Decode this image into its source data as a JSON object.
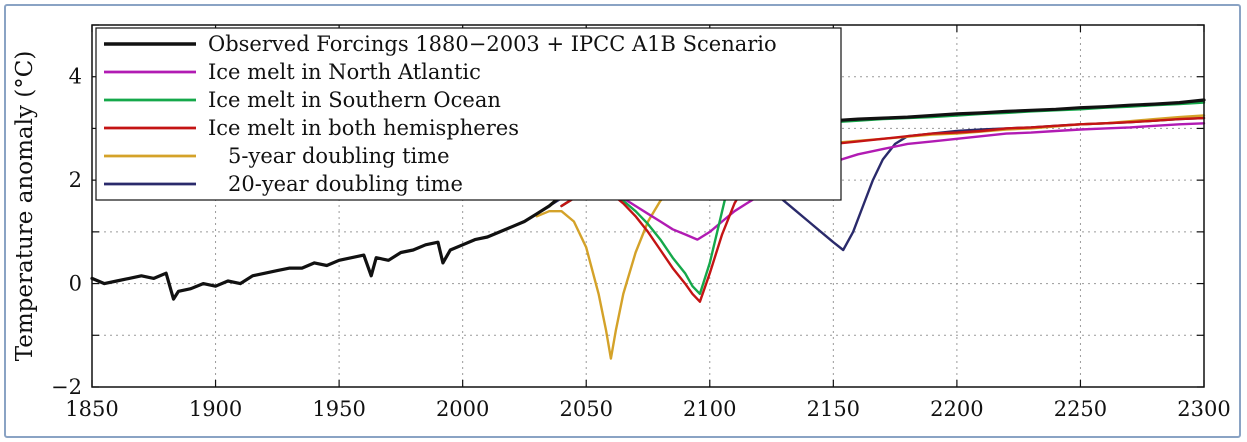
{
  "chart_data": {
    "type": "line",
    "title": "",
    "xlabel": "",
    "ylabel": "Temperature anomaly (°C)",
    "xlim": [
      1850,
      2300
    ],
    "ylim": [
      -2,
      5
    ],
    "xticks": [
      "1850",
      "1900",
      "1950",
      "2000",
      "2050",
      "2100",
      "2150",
      "2200",
      "2250",
      "2300"
    ],
    "yticks": [
      "−2",
      "0",
      "2",
      "4"
    ],
    "grid": true,
    "legend_position": "top-left",
    "series": [
      {
        "name": "Observed Forcings 1880−2003 + IPCC A1B Scenario",
        "color": "#111111",
        "x": [
          1850,
          1855,
          1860,
          1865,
          1870,
          1875,
          1880,
          1883,
          1885,
          1890,
          1895,
          1900,
          1905,
          1910,
          1915,
          1920,
          1925,
          1930,
          1935,
          1940,
          1945,
          1950,
          1955,
          1960,
          1963,
          1965,
          1970,
          1975,
          1980,
          1985,
          1990,
          1992,
          1995,
          2000,
          2005,
          2010,
          2015,
          2020,
          2025,
          2030,
          2035,
          2040,
          2045,
          2050,
          2055,
          2060,
          2065,
          2070,
          2075,
          2080,
          2085,
          2090,
          2095,
          2100,
          2110,
          2120,
          2130,
          2140,
          2150,
          2160,
          2170,
          2180,
          2190,
          2200,
          2210,
          2220,
          2230,
          2240,
          2250,
          2260,
          2270,
          2280,
          2290,
          2300
        ],
        "y": [
          0.1,
          0.0,
          0.05,
          0.1,
          0.15,
          0.1,
          0.2,
          -0.3,
          -0.15,
          -0.1,
          0.0,
          -0.05,
          0.05,
          0.0,
          0.15,
          0.2,
          0.25,
          0.3,
          0.3,
          0.4,
          0.35,
          0.45,
          0.5,
          0.55,
          0.15,
          0.5,
          0.45,
          0.6,
          0.65,
          0.75,
          0.8,
          0.4,
          0.65,
          0.75,
          0.85,
          0.9,
          1.0,
          1.1,
          1.2,
          1.35,
          1.5,
          1.7,
          1.85,
          1.95,
          2.1,
          2.25,
          2.4,
          2.55,
          2.65,
          2.75,
          2.85,
          2.9,
          2.95,
          3.0,
          3.05,
          3.08,
          3.1,
          3.12,
          3.15,
          3.18,
          3.2,
          3.22,
          3.25,
          3.28,
          3.3,
          3.33,
          3.35,
          3.37,
          3.4,
          3.42,
          3.45,
          3.47,
          3.5,
          3.55
        ]
      },
      {
        "name": "Ice melt in North Atlantic",
        "color": "#b11bb3",
        "x": [
          2040,
          2045,
          2050,
          2055,
          2060,
          2065,
          2070,
          2075,
          2080,
          2085,
          2090,
          2095,
          2100,
          2105,
          2110,
          2115,
          2120,
          2130,
          2140,
          2150,
          2160,
          2170,
          2180,
          2190,
          2200,
          2210,
          2220,
          2230,
          2240,
          2250,
          2260,
          2270,
          2280,
          2290,
          2300
        ],
        "y": [
          1.5,
          1.65,
          1.75,
          1.8,
          1.75,
          1.65,
          1.5,
          1.35,
          1.2,
          1.05,
          0.95,
          0.85,
          1.0,
          1.2,
          1.4,
          1.55,
          1.7,
          1.95,
          2.15,
          2.35,
          2.5,
          2.6,
          2.7,
          2.75,
          2.8,
          2.85,
          2.9,
          2.92,
          2.95,
          2.98,
          3.0,
          3.02,
          3.05,
          3.08,
          3.1
        ]
      },
      {
        "name": "Ice melt in Southern Ocean",
        "color": "#15a84a",
        "x": [
          2040,
          2045,
          2050,
          2055,
          2060,
          2065,
          2070,
          2075,
          2080,
          2085,
          2090,
          2093,
          2096,
          2100,
          2103,
          2106,
          2110,
          2115,
          2120,
          2130,
          2140,
          2150,
          2160,
          2170,
          2180,
          2190,
          2200,
          2210,
          2220,
          2230,
          2240,
          2250,
          2260,
          2270,
          2280,
          2290,
          2300
        ],
        "y": [
          1.5,
          1.65,
          1.75,
          1.8,
          1.75,
          1.6,
          1.4,
          1.15,
          0.85,
          0.5,
          0.2,
          -0.05,
          -0.2,
          0.4,
          1.0,
          1.6,
          2.2,
          2.65,
          2.95,
          3.05,
          3.1,
          3.12,
          3.15,
          3.18,
          3.2,
          3.22,
          3.25,
          3.28,
          3.3,
          3.33,
          3.35,
          3.37,
          3.4,
          3.42,
          3.45,
          3.47,
          3.5
        ]
      },
      {
        "name": "Ice melt in both hemispheres",
        "color": "#c41414",
        "x": [
          2040,
          2045,
          2050,
          2055,
          2060,
          2065,
          2070,
          2075,
          2080,
          2085,
          2090,
          2093,
          2096,
          2100,
          2105,
          2110,
          2115,
          2120,
          2125,
          2130,
          2140,
          2150,
          2160,
          2170,
          2180,
          2190,
          2200,
          2210,
          2220,
          2230,
          2240,
          2250,
          2260,
          2270,
          2280,
          2290,
          2300
        ],
        "y": [
          1.5,
          1.65,
          1.75,
          1.8,
          1.75,
          1.55,
          1.3,
          1.0,
          0.65,
          0.3,
          0.0,
          -0.2,
          -0.35,
          0.2,
          0.95,
          1.55,
          1.95,
          2.2,
          2.35,
          2.45,
          2.6,
          2.7,
          2.75,
          2.8,
          2.85,
          2.9,
          2.92,
          2.95,
          3.0,
          3.02,
          3.05,
          3.08,
          3.1,
          3.12,
          3.15,
          3.18,
          3.2
        ]
      },
      {
        "name": "5-year doubling time",
        "color": "#d4a229",
        "x": [
          2030,
          2035,
          2040,
          2045,
          2050,
          2055,
          2058,
          2060,
          2062,
          2065,
          2070,
          2075,
          2080,
          2085,
          2090,
          2095,
          2100,
          2110,
          2120,
          2130,
          2140,
          2150,
          2160,
          2170,
          2180,
          2190,
          2200,
          2210,
          2220,
          2230,
          2240,
          2250,
          2260,
          2270,
          2280,
          2290,
          2300
        ],
        "y": [
          1.3,
          1.4,
          1.4,
          1.2,
          0.7,
          -0.2,
          -0.9,
          -1.45,
          -0.9,
          -0.2,
          0.6,
          1.2,
          1.6,
          1.85,
          2.05,
          2.2,
          2.3,
          2.45,
          2.55,
          2.62,
          2.68,
          2.72,
          2.76,
          2.8,
          2.84,
          2.88,
          2.9,
          2.94,
          2.98,
          3.0,
          3.04,
          3.08,
          3.1,
          3.14,
          3.18,
          3.22,
          3.25
        ]
      },
      {
        "name": "20-year doubling time",
        "color": "#2a2a6b",
        "x": [
          1850,
          1855,
          1860,
          1865,
          1870,
          1875,
          1880,
          1883,
          1885,
          1890,
          1895,
          1900,
          1905,
          1910,
          1915,
          1920,
          1925,
          1930,
          1935,
          1940,
          1945,
          1950,
          1955,
          1960,
          1963,
          1965,
          1970,
          1975,
          1980,
          1985,
          1990,
          1992,
          1995,
          2000,
          2005,
          2010,
          2015,
          2020,
          2025,
          2030,
          2035,
          2040,
          2045,
          2050,
          2055,
          2060,
          2065,
          2070,
          2075,
          2080,
          2085,
          2090,
          2095,
          2100,
          2105,
          2110,
          2115,
          2120,
          2125,
          2130,
          2135,
          2140,
          2145,
          2150,
          2154,
          2158,
          2162,
          2166,
          2170,
          2175,
          2180,
          2190,
          2200,
          2210,
          2220,
          2230,
          2240,
          2250,
          2260,
          2270,
          2280,
          2290,
          2300
        ],
        "y": [
          0.1,
          0.0,
          0.05,
          0.1,
          0.15,
          0.1,
          0.2,
          -0.3,
          -0.15,
          -0.1,
          0.0,
          -0.05,
          0.05,
          0.0,
          0.15,
          0.2,
          0.25,
          0.3,
          0.3,
          0.4,
          0.35,
          0.45,
          0.5,
          0.55,
          0.15,
          0.5,
          0.45,
          0.6,
          0.65,
          0.75,
          0.8,
          0.4,
          0.65,
          0.75,
          0.85,
          0.9,
          1.0,
          1.1,
          1.2,
          1.35,
          1.5,
          1.65,
          1.8,
          1.9,
          2.0,
          2.1,
          2.2,
          2.3,
          2.38,
          2.44,
          2.47,
          2.5,
          2.5,
          2.48,
          2.45,
          2.35,
          2.2,
          2.0,
          1.8,
          1.6,
          1.4,
          1.2,
          1.0,
          0.8,
          0.65,
          1.0,
          1.5,
          2.0,
          2.4,
          2.7,
          2.85,
          2.9,
          2.95,
          2.98,
          3.0,
          3.02,
          3.05,
          3.08,
          3.1,
          3.12,
          3.15,
          3.18,
          3.2
        ]
      }
    ]
  }
}
